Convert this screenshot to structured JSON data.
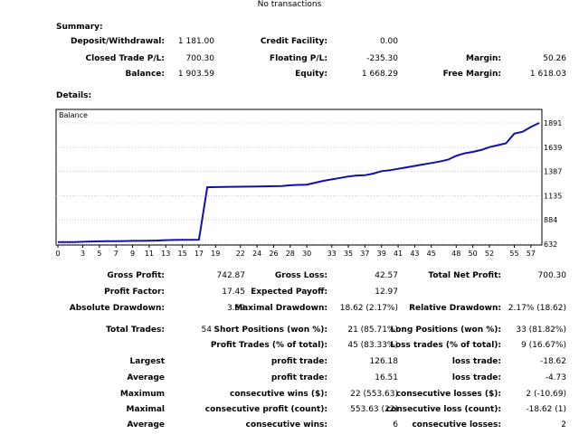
{
  "title": "No transactions",
  "summary": {
    "heading": "Summary:",
    "deposit_label": "Deposit/Withdrawal:",
    "deposit_value": "1 181.00",
    "credit_label": "Credit Facility:",
    "credit_value": "0.00",
    "closed_label": "Closed Trade P/L:",
    "closed_value": "700.30",
    "floating_label": "Floating P/L:",
    "floating_value": "-235.30",
    "margin_label": "Margin:",
    "margin_value": "50.26",
    "balance_label": "Balance:",
    "balance_value": "1 903.59",
    "equity_label": "Equity:",
    "equity_value": "1 668.29",
    "free_margin_label": "Free Margin:",
    "free_margin_value": "1 618.03"
  },
  "details": {
    "heading": "Details:"
  },
  "chart_data": {
    "type": "line",
    "title": "Balance",
    "series": [
      {
        "name": "Balance",
        "x": [
          0,
          1,
          2,
          3,
          4,
          5,
          6,
          7,
          8,
          9,
          10,
          11,
          12,
          13,
          14,
          15,
          16,
          17,
          18,
          19,
          20,
          21,
          22,
          23,
          24,
          25,
          26,
          27,
          28,
          29,
          30,
          31,
          32,
          33,
          34,
          35,
          36,
          37,
          38,
          39,
          40,
          41,
          42,
          43,
          44,
          45,
          46,
          47,
          48,
          49,
          50,
          51,
          52,
          53,
          54,
          55,
          56,
          57,
          58
        ],
        "y": [
          653,
          653,
          654,
          656,
          659,
          661,
          662,
          663,
          664,
          666,
          666,
          668,
          670,
          673,
          675,
          677,
          677,
          678,
          1223,
          1225,
          1226,
          1228,
          1229,
          1230,
          1231,
          1232,
          1234,
          1236,
          1244,
          1247,
          1250,
          1270,
          1290,
          1305,
          1320,
          1335,
          1345,
          1348,
          1365,
          1390,
          1400,
          1415,
          1430,
          1445,
          1460,
          1475,
          1490,
          1510,
          1550,
          1575,
          1590,
          1610,
          1640,
          1660,
          1680,
          1780,
          1800,
          1850,
          1891
        ]
      }
    ],
    "x_ticks": [
      "0",
      "3",
      "5",
      "7",
      "9",
      "11",
      "13",
      "15",
      "17",
      "19",
      "22",
      "24",
      "26",
      "28",
      "30",
      "33",
      "35",
      "37",
      "39",
      "41",
      "43",
      "45",
      "48",
      "50",
      "52",
      "55",
      "57"
    ],
    "y_ticks": [
      "1891",
      "1639",
      "1387",
      "1135",
      "884",
      "632"
    ],
    "xlim": [
      0,
      58
    ],
    "ylim": [
      632,
      1891
    ]
  },
  "stats": {
    "gross_profit_label": "Gross Profit:",
    "gross_profit_value": "742.87",
    "gross_loss_label": "Gross Loss:",
    "gross_loss_value": "42.57",
    "total_net_profit_label": "Total Net Profit:",
    "total_net_profit_value": "700.30",
    "profit_factor_label": "Profit Factor:",
    "profit_factor_value": "17.45",
    "expected_payoff_label": "Expected Payoff:",
    "expected_payoff_value": "12.97",
    "absolute_drawdown_label": "Absolute Drawdown:",
    "absolute_drawdown_value": "3.69",
    "maximal_drawdown_label": "Maximal Drawdown:",
    "maximal_drawdown_value": "18.62 (2.17%)",
    "relative_drawdown_label": "Relative Drawdown:",
    "relative_drawdown_value": "2.17% (18.62)",
    "total_trades_label": "Total Trades:",
    "total_trades_value": "54",
    "short_positions_label": "Short Positions (won %):",
    "short_positions_value": "21 (85.71%)",
    "long_positions_label": "Long Positions (won %):",
    "long_positions_value": "33 (81.82%)",
    "profit_trades_label": "Profit Trades (% of total):",
    "profit_trades_value": "45 (83.33%)",
    "loss_trades_label": "Loss trades (% of total):",
    "loss_trades_value": "9 (16.67%)",
    "largest_label": "Largest",
    "largest_profit_label": "profit trade:",
    "largest_profit_value": "126.18",
    "largest_loss_label": "loss trade:",
    "largest_loss_value": "-18.62",
    "average_label": "Average",
    "average_profit_label": "profit trade:",
    "average_profit_value": "16.51",
    "average_loss_label": "loss trade:",
    "average_loss_value": "-4.73",
    "maximum_label": "Maximum",
    "max_cons_wins_label": "consecutive wins ($):",
    "max_cons_wins_value": "22 (553.63)",
    "max_cons_losses_label": "consecutive losses ($):",
    "max_cons_losses_value": "2 (-10.69)",
    "maximal_label": "Maximal",
    "maximal_cons_profit_label": "consecutive profit (count):",
    "maximal_cons_profit_value": "553.63 (22)",
    "maximal_cons_loss_label": "consecutive loss (count):",
    "maximal_cons_loss_value": "-18.62 (1)",
    "average2_label": "Average",
    "avg_cons_wins_label": "consecutive wins:",
    "avg_cons_wins_value": "6",
    "avg_cons_losses_label": "consecutive losses:",
    "avg_cons_losses_value": "2"
  }
}
